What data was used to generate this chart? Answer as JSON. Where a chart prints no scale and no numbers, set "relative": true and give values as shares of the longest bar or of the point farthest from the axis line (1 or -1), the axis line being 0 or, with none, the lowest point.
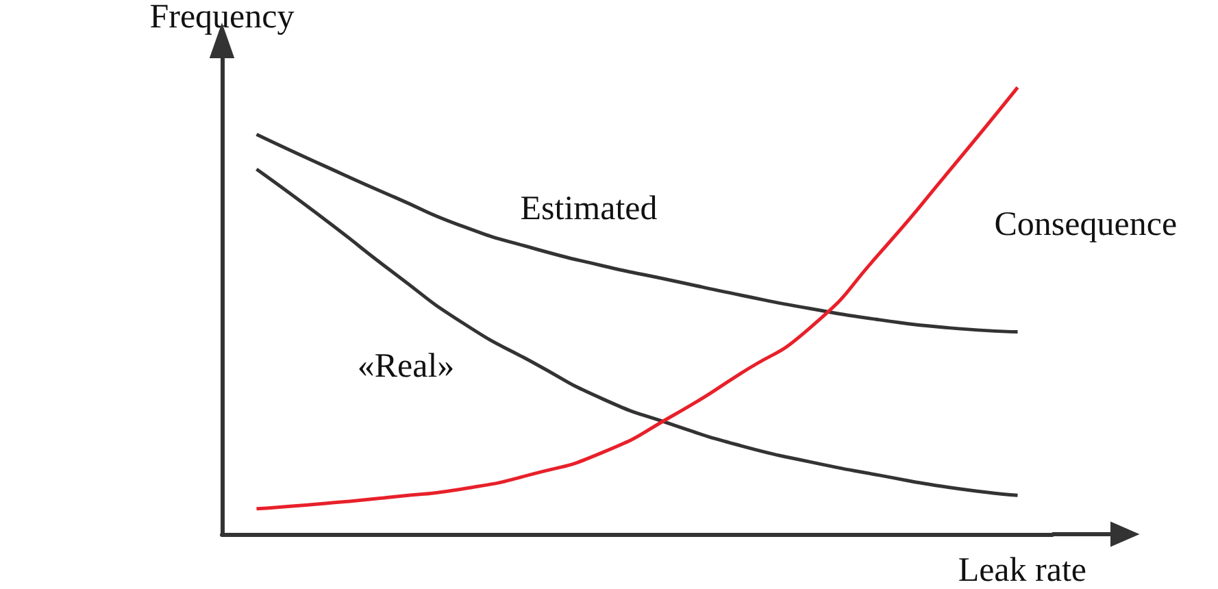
{
  "chart_data": {
    "type": "line",
    "relative": true,
    "xlabel": "Leak rate",
    "ylabel": "Frequency",
    "categories": [
      null,
      null,
      null,
      null,
      null,
      null,
      null,
      null,
      null,
      null,
      null,
      null
    ],
    "series": [
      {
        "name": "Estimated",
        "color": "#333333",
        "values": [
          0.895,
          0.823,
          0.754,
          0.688,
          0.64,
          0.601,
          0.568,
          0.535,
          0.505,
          0.48,
          0.462,
          0.453
        ]
      },
      {
        "name": "«Real»",
        "color": "#333333",
        "values": [
          0.817,
          0.703,
          0.583,
          0.471,
          0.384,
          0.303,
          0.246,
          0.198,
          0.162,
          0.132,
          0.105,
          0.087
        ]
      },
      {
        "name": "Consequence",
        "color": "#e8202a",
        "values": [
          0.057,
          0.069,
          0.084,
          0.102,
          0.135,
          0.183,
          0.264,
          0.36,
          0.462,
          0.628,
          0.811,
          1
        ]
      }
    ]
  }
}
